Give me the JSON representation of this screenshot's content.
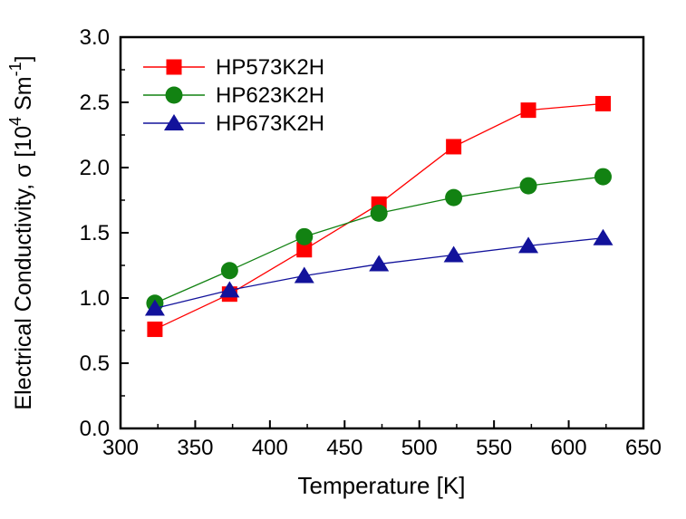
{
  "figure": {
    "background": "#ffffff",
    "frame_color": "#000000"
  },
  "chart_data": {
    "type": "line",
    "title": "",
    "xlabel": "Temperature [K]",
    "ylabel": "Electrical Conductivity, σ [10⁴ Sm⁻¹]",
    "ylabel_parts": [
      {
        "text": "Electrical Conductivity, σ [10"
      },
      {
        "text": "4",
        "sup": true
      },
      {
        "text": " Sm"
      },
      {
        "text": "-1",
        "sup": true
      },
      {
        "text": "]"
      }
    ],
    "xlim": [
      300,
      650
    ],
    "ylim": [
      0.0,
      3.0
    ],
    "grid": false,
    "legend_position": "top-left-inside",
    "x_major_ticks": [
      300,
      350,
      400,
      450,
      500,
      550,
      600,
      650
    ],
    "x_tick_labels": [
      "300",
      "350",
      "400",
      "450",
      "500",
      "550",
      "600",
      "650"
    ],
    "x_minor_ticks": [
      325,
      375,
      425,
      475,
      525,
      575,
      625
    ],
    "y_major_ticks": [
      0.0,
      0.5,
      1.0,
      1.5,
      2.0,
      2.5,
      3.0
    ],
    "y_tick_labels": [
      "0.0",
      "0.5",
      "1.0",
      "1.5",
      "2.0",
      "2.5",
      "3.0"
    ],
    "y_minor_ticks": [
      0.25,
      0.75,
      1.25,
      1.75,
      2.25,
      2.75
    ],
    "x": [
      323,
      373,
      423,
      473,
      523,
      573,
      623
    ],
    "series": [
      {
        "name": "HP573K2H",
        "marker": "square",
        "color": "#ff0000",
        "values": [
          0.76,
          1.03,
          1.37,
          1.72,
          2.16,
          2.44,
          2.49
        ]
      },
      {
        "name": "HP623K2H",
        "marker": "circle",
        "color": "#128212",
        "values": [
          0.96,
          1.21,
          1.47,
          1.65,
          1.77,
          1.86,
          1.93
        ]
      },
      {
        "name": "HP673K2H",
        "marker": "triangle",
        "color": "#12129b",
        "values": [
          0.92,
          1.06,
          1.17,
          1.26,
          1.33,
          1.4,
          1.46
        ]
      }
    ]
  }
}
